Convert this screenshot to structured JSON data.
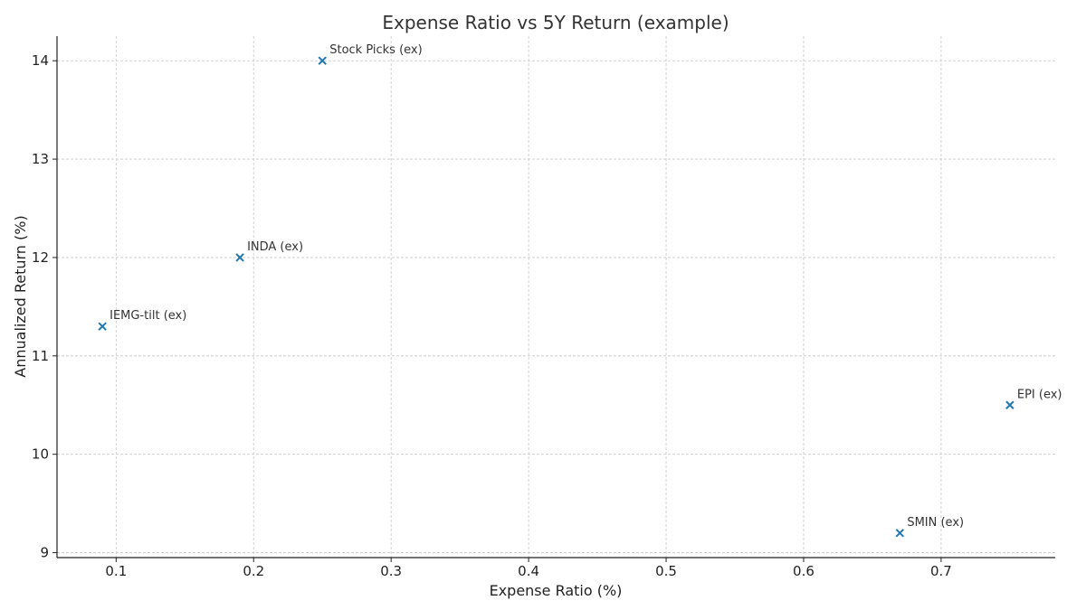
{
  "chart_data": {
    "type": "scatter",
    "title": "Expense Ratio vs 5Y Return (example)",
    "xlabel": "Expense Ratio (%)",
    "ylabel": "Annualized Return (%)",
    "xlim": [
      0.057,
      0.783
    ],
    "ylim": [
      8.95,
      14.25
    ],
    "xticks": [
      0.1,
      0.2,
      0.3,
      0.4,
      0.5,
      0.6,
      0.7
    ],
    "xtick_labels": [
      "0.1",
      "0.2",
      "0.3",
      "0.4",
      "0.5",
      "0.6",
      "0.7"
    ],
    "yticks": [
      9,
      10,
      11,
      12,
      13,
      14
    ],
    "ytick_labels": [
      "9",
      "10",
      "11",
      "12",
      "13",
      "14"
    ],
    "grid": true,
    "marker": "x",
    "color": "#1f77b4",
    "points": [
      {
        "label": "IEMG-tilt (ex)",
        "x": 0.09,
        "y": 11.3
      },
      {
        "label": "INDA (ex)",
        "x": 0.19,
        "y": 12.0
      },
      {
        "label": "Stock Picks (ex)",
        "x": 0.25,
        "y": 14.0
      },
      {
        "label": "SMIN (ex)",
        "x": 0.67,
        "y": 9.2
      },
      {
        "label": "EPI (ex)",
        "x": 0.75,
        "y": 10.5
      }
    ]
  }
}
